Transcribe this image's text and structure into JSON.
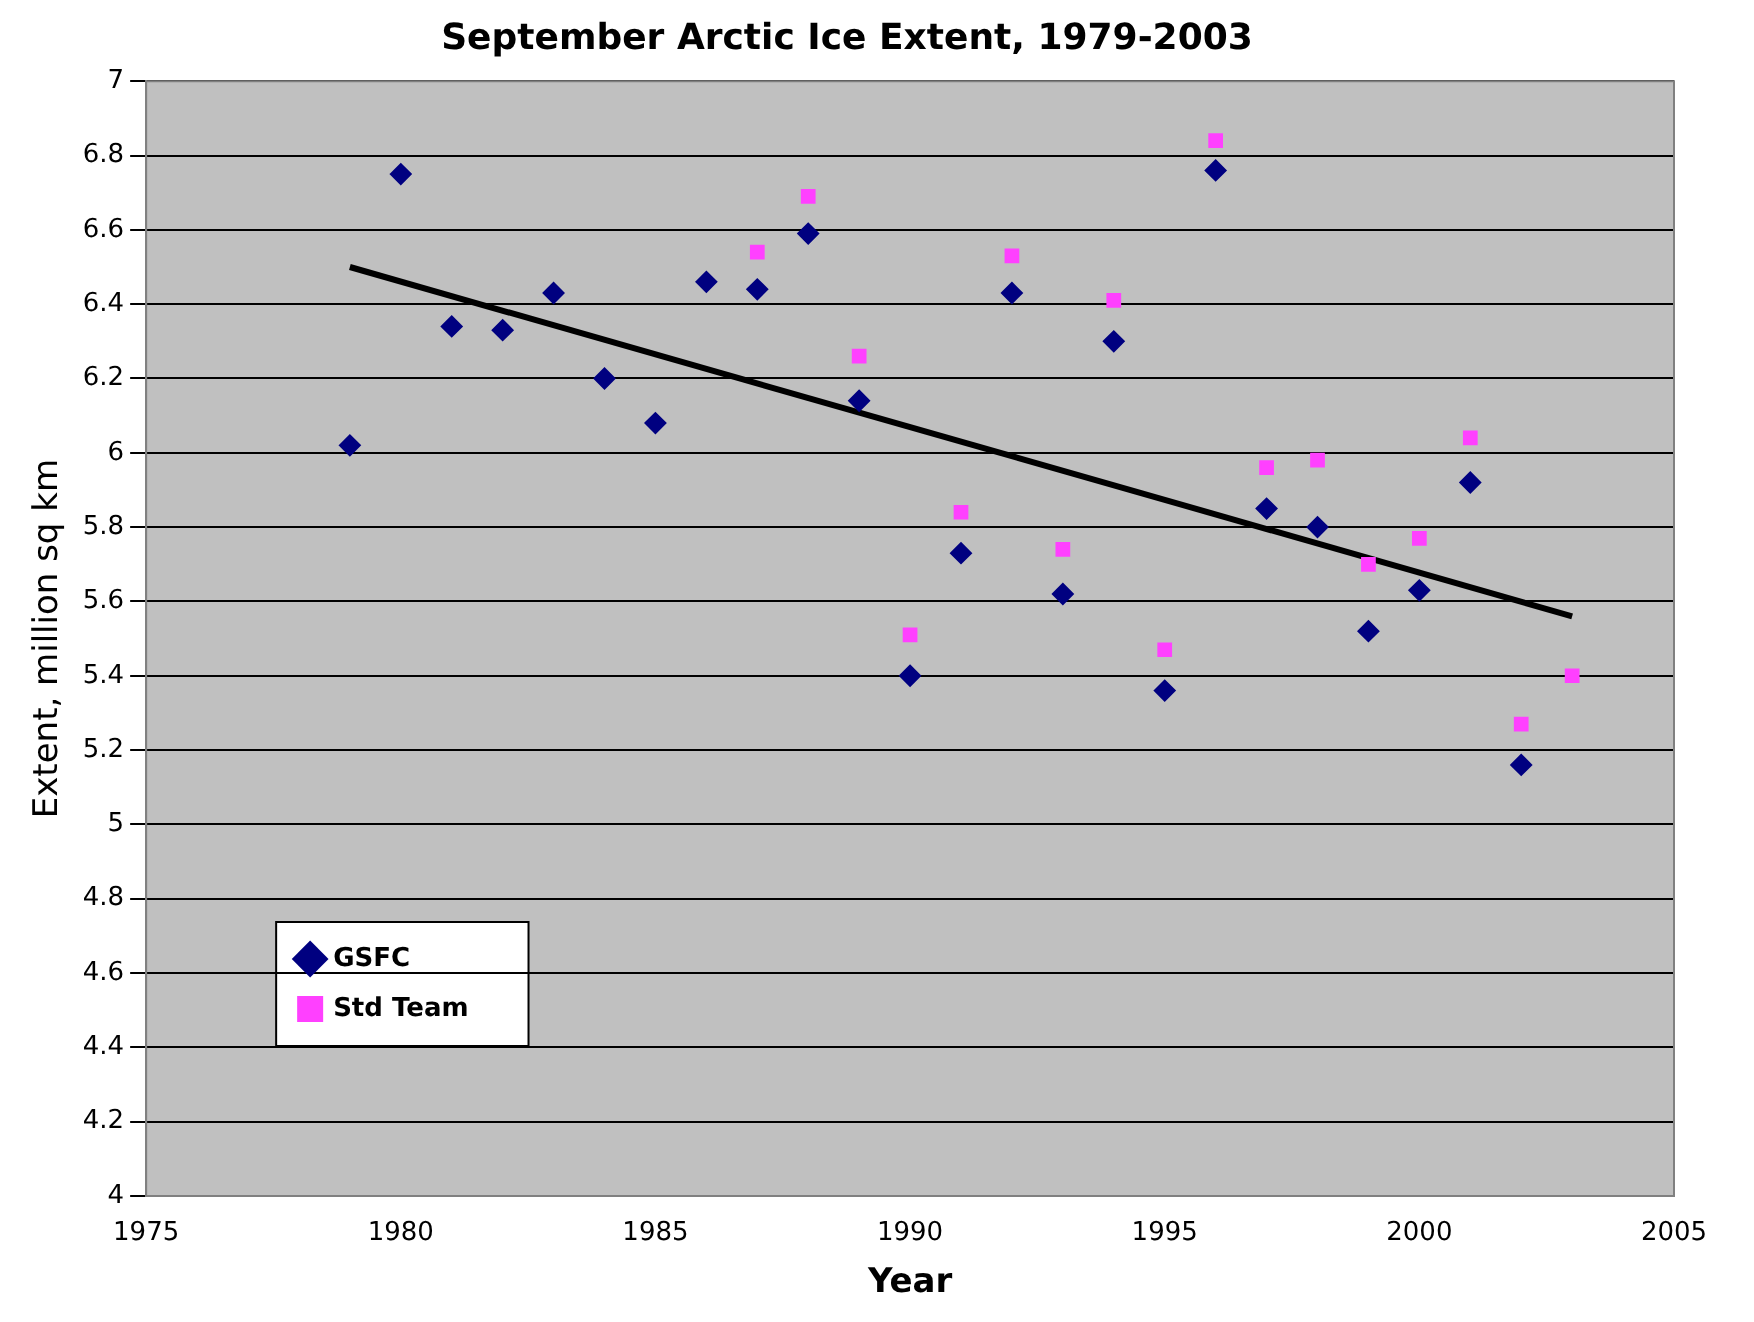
{
  "chart_data": {
    "type": "scatter",
    "title": "September Arctic Ice Extent, 1979-2003",
    "xlabel": "Year",
    "ylabel": "Extent, million sq km",
    "x": [
      1979,
      1980,
      1981,
      1982,
      1983,
      1984,
      1985,
      1986,
      1987,
      1988,
      1989,
      1990,
      1991,
      1992,
      1993,
      1994,
      1995,
      1996,
      1997,
      1998,
      1999,
      2000,
      2001,
      2002,
      2003
    ],
    "series": [
      {
        "name": "GSFC",
        "color": "#000080",
        "marker": "diamond",
        "values": [
          6.02,
          6.75,
          6.34,
          6.33,
          6.43,
          6.2,
          6.08,
          6.46,
          6.44,
          6.59,
          6.14,
          5.4,
          5.73,
          6.43,
          5.62,
          6.3,
          5.36,
          6.76,
          5.85,
          5.8,
          5.52,
          5.63,
          5.92,
          5.16,
          null
        ]
      },
      {
        "name": "Std Team",
        "color": "#ff40ff",
        "marker": "square",
        "values": [
          null,
          null,
          null,
          null,
          null,
          null,
          null,
          null,
          6.54,
          6.69,
          6.26,
          5.51,
          5.84,
          6.53,
          5.74,
          6.41,
          5.47,
          6.84,
          5.96,
          5.98,
          5.7,
          5.77,
          6.04,
          5.27,
          5.4
        ]
      },
      {
        "type": "line",
        "color": "#000000",
        "marker": "none",
        "x": [
          1979,
          2003
        ],
        "values": [
          6.5,
          5.56
        ]
      }
    ],
    "xlim": [
      1975,
      2005
    ],
    "xticks": [
      1975,
      1980,
      1985,
      1990,
      1995,
      2000,
      2005
    ],
    "ylim": [
      4,
      7
    ],
    "yticks": [
      4,
      4.2,
      4.4,
      4.6,
      4.8,
      5,
      5.2,
      5.4,
      5.6,
      5.8,
      6,
      6.2,
      6.4,
      6.6,
      6.8,
      7
    ],
    "grid": "y",
    "legend": "bottom left"
  }
}
